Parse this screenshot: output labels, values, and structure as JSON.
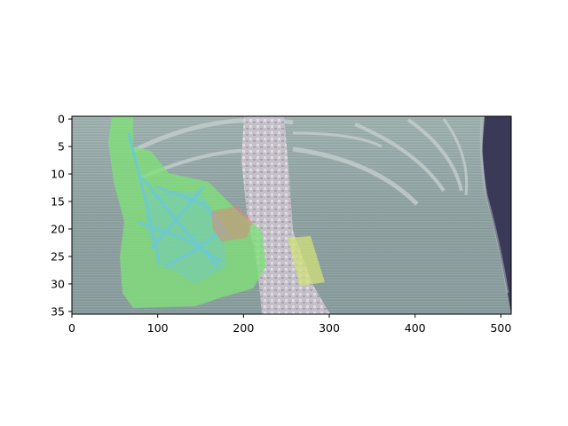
{
  "figure": {
    "x_ticks": [
      "0",
      "100",
      "200",
      "300",
      "400",
      "500"
    ],
    "y_ticks": [
      "0",
      "5",
      "10",
      "15",
      "20",
      "25",
      "30",
      "35"
    ],
    "x_range": [
      0,
      512
    ],
    "y_range": [
      35.5,
      -0.5
    ],
    "colors": {
      "background_tissue": "#8fa3a3",
      "bone": "#d6d0d6",
      "air": "#3a3a58",
      "overlay_green": "#7fe07a",
      "overlay_cyan": "#6cc8d8",
      "overlay_yellow": "#d2e27a",
      "overlay_red": "#d88a7a"
    }
  }
}
